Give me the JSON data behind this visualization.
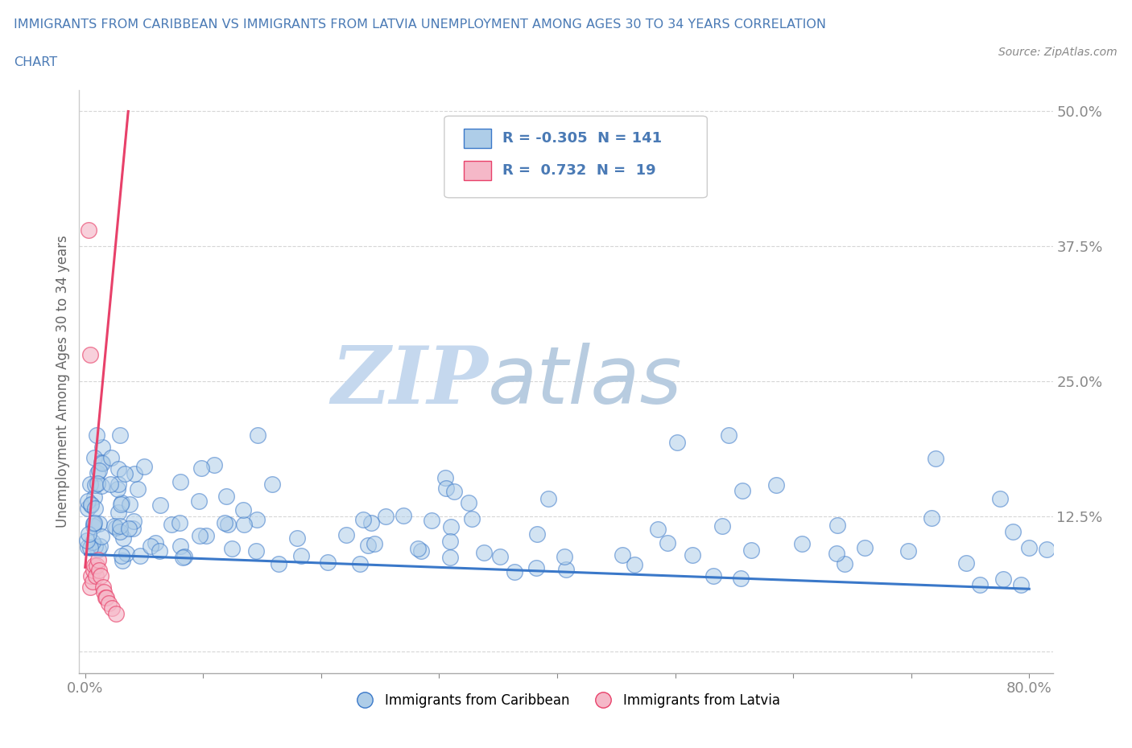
{
  "title_line1": "IMMIGRANTS FROM CARIBBEAN VS IMMIGRANTS FROM LATVIA UNEMPLOYMENT AMONG AGES 30 TO 34 YEARS CORRELATION",
  "title_line2": "CHART",
  "source": "Source: ZipAtlas.com",
  "ylabel": "Unemployment Among Ages 30 to 34 years",
  "xlim": [
    -0.005,
    0.82
  ],
  "ylim": [
    -0.02,
    0.52
  ],
  "yticks": [
    0.0,
    0.125,
    0.25,
    0.375,
    0.5
  ],
  "ytick_labels": [
    "",
    "12.5%",
    "25.0%",
    "37.5%",
    "50.0%"
  ],
  "xticks": [
    0.0,
    0.1,
    0.2,
    0.3,
    0.4,
    0.5,
    0.6,
    0.7,
    0.8
  ],
  "xtick_labels": [
    "0.0%",
    "",
    "",
    "",
    "",
    "",
    "",
    "",
    "80.0%"
  ],
  "caribbean_color": "#aecde8",
  "latvia_color": "#f5b8c8",
  "trend_caribbean_color": "#3a78c9",
  "trend_latvia_color": "#e8416a",
  "R_caribbean": -0.305,
  "N_caribbean": 141,
  "R_latvia": 0.732,
  "N_latvia": 19,
  "watermark_zip": "ZIP",
  "watermark_atlas": "atlas",
  "watermark_color_zip": "#c5d8ee",
  "watermark_color_atlas": "#b8cce0",
  "title_color": "#4a7ab5",
  "axis_label_color": "#666666",
  "tick_color": "#4a7ab5",
  "trend_carib_x0": 0.0,
  "trend_carib_y0": 0.09,
  "trend_carib_x1": 0.8,
  "trend_carib_y1": 0.058,
  "trend_latvia_x0": 0.0,
  "trend_latvia_y0": 0.078,
  "trend_latvia_x1": 0.03,
  "trend_latvia_y1": 0.425
}
